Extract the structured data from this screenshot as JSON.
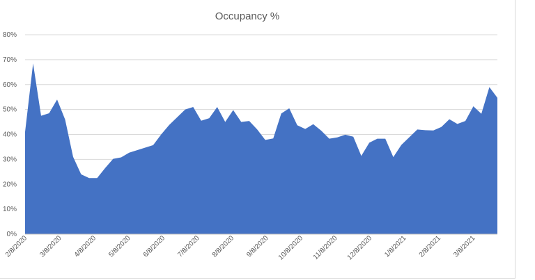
{
  "chart_data": {
    "type": "area",
    "title": "Occupancy %",
    "xlabel": "",
    "ylabel": "",
    "ylim": [
      0,
      80
    ],
    "y_ticks": [
      "0%",
      "10%",
      "20%",
      "30%",
      "40%",
      "50%",
      "60%",
      "70%",
      "80%"
    ],
    "x_tick_labels": [
      "2/8/2020",
      "3/8/2020",
      "4/8/2020",
      "5/8/2020",
      "6/8/2020",
      "7/8/2020",
      "8/8/2020",
      "9/8/2020",
      "10/8/2020",
      "11/8/2020",
      "12/8/2020",
      "1/8/2021",
      "2/8/2021",
      "3/8/2021"
    ],
    "grid": "horizontal",
    "legend": "none",
    "series_color": "#4472C4",
    "values": [
      41,
      68.5,
      47.5,
      48.5,
      54,
      46,
      31,
      24,
      22.5,
      22.5,
      26.5,
      30.2,
      30.8,
      32.7,
      33.7,
      34.7,
      35.7,
      40,
      43.8,
      46.9,
      50,
      51,
      45.5,
      46.5,
      51,
      45,
      49.8,
      45,
      45.4,
      42,
      37.8,
      38.4,
      48.4,
      50.5,
      43.7,
      42.2,
      44.1,
      41.5,
      38.3,
      38.8,
      39.9,
      39.1,
      31.4,
      36.7,
      38.3,
      38.3,
      30.9,
      35.8,
      38.9,
      42,
      41.7,
      41.6,
      43,
      46.1,
      44.2,
      45.4,
      51.3,
      48.3,
      59,
      54.7
    ]
  }
}
